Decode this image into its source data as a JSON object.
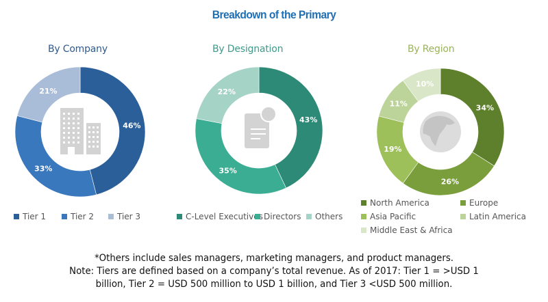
{
  "title": "Breakdown of the Primary",
  "chart_data": [
    {
      "type": "pie",
      "title": "By Company",
      "title_color": "#2e5a8c",
      "center_icon": "building-icon",
      "categories": [
        "Tier 1",
        "Tier 2",
        "Tier 3"
      ],
      "values": [
        46,
        33,
        21
      ],
      "labels": [
        "46%",
        "33%",
        "21%"
      ],
      "colors": [
        "#2b5f9a",
        "#3a78bd",
        "#a9bcd8"
      ]
    },
    {
      "type": "pie",
      "title": "By Designation",
      "title_color": "#3d9a8a",
      "center_icon": "document-icon",
      "categories": [
        "C-Level Executives",
        "Directors",
        "Others"
      ],
      "values": [
        43,
        35,
        22
      ],
      "labels": [
        "43%",
        "35%",
        "22%"
      ],
      "colors": [
        "#2d8a76",
        "#3aad93",
        "#a5d3c6"
      ]
    },
    {
      "type": "pie",
      "title": "By Region",
      "title_color": "#9bb35a",
      "center_icon": "globe-icon",
      "categories": [
        "North America",
        "Europe",
        "Asia Pacific",
        "Latin America",
        "Middle East & Africa"
      ],
      "values": [
        34,
        26,
        19,
        11,
        10
      ],
      "labels": [
        "34%",
        "26%",
        "19%",
        "11%",
        "10%"
      ],
      "colors": [
        "#5e7f2c",
        "#7a9e3c",
        "#9dc05a",
        "#bcd39a",
        "#d9e6c8"
      ]
    }
  ],
  "notes": [
    "*Others include sales managers, marketing managers, and product managers.",
    "Note: Tiers are defined based on a company’s total revenue. As of 2017: Tier 1 = >USD 1",
    "billion, Tier 2 = USD 500 million to USD 1 billion, and Tier 3 <USD 500 million."
  ]
}
